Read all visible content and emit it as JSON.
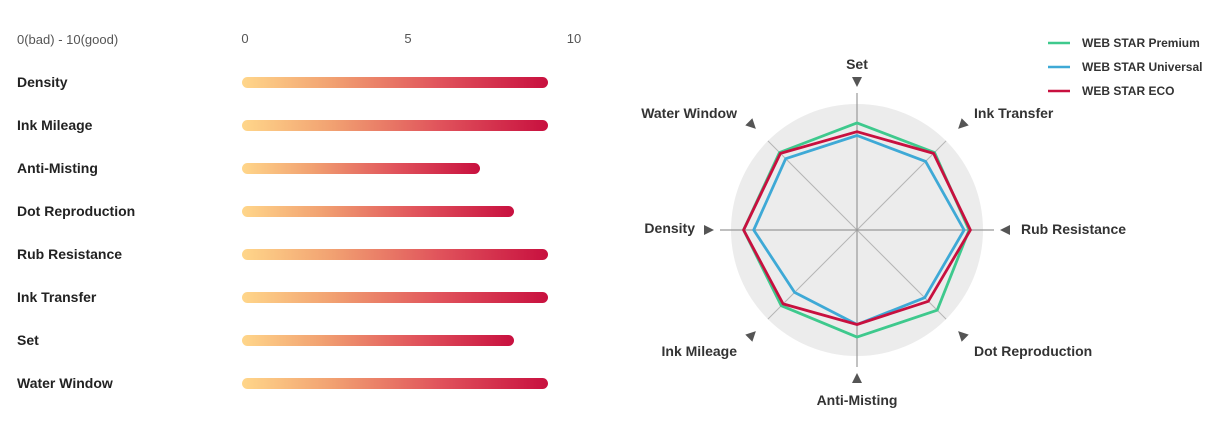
{
  "chart_data": [
    {
      "type": "bar",
      "orientation": "horizontal",
      "scale_label": "0(bad) - 10(good)",
      "ticks": [
        "0",
        "5",
        "10"
      ],
      "xlim": [
        0,
        10
      ],
      "categories": [
        "Density",
        "Ink Mileage",
        "Anti-Misting",
        "Dot Reproduction",
        "Rub Resistance",
        "Ink Transfer",
        "Set",
        "Water Window"
      ],
      "values": [
        9,
        9,
        7,
        8,
        9,
        9,
        8,
        9
      ],
      "colors": {
        "start": "#ffd68a",
        "end": "#c8103f"
      }
    },
    {
      "type": "radar",
      "axes": [
        "Set",
        "Ink Transfer",
        "Rub Resistance",
        "Dot Reproduction",
        "Anti-Misting",
        "Ink Mileage",
        "Density",
        "Water Window"
      ],
      "rlim": [
        0,
        10
      ],
      "legend_position": "top-right",
      "series": [
        {
          "name": "WEB STAR Premium",
          "color": "#3ec98d",
          "values": [
            8.5,
            8.7,
            8.9,
            9.0,
            8.5,
            8.5,
            9.0,
            8.7
          ]
        },
        {
          "name": "WEB STAR Universal",
          "color": "#3ea9d6",
          "values": [
            7.5,
            7.7,
            8.5,
            7.6,
            7.5,
            7.0,
            8.2,
            8.0
          ]
        },
        {
          "name": "WEB STAR ECO",
          "color": "#c8103f",
          "values": [
            7.8,
            8.6,
            9.0,
            8.0,
            7.5,
            8.3,
            9.0,
            8.6
          ]
        }
      ]
    }
  ]
}
